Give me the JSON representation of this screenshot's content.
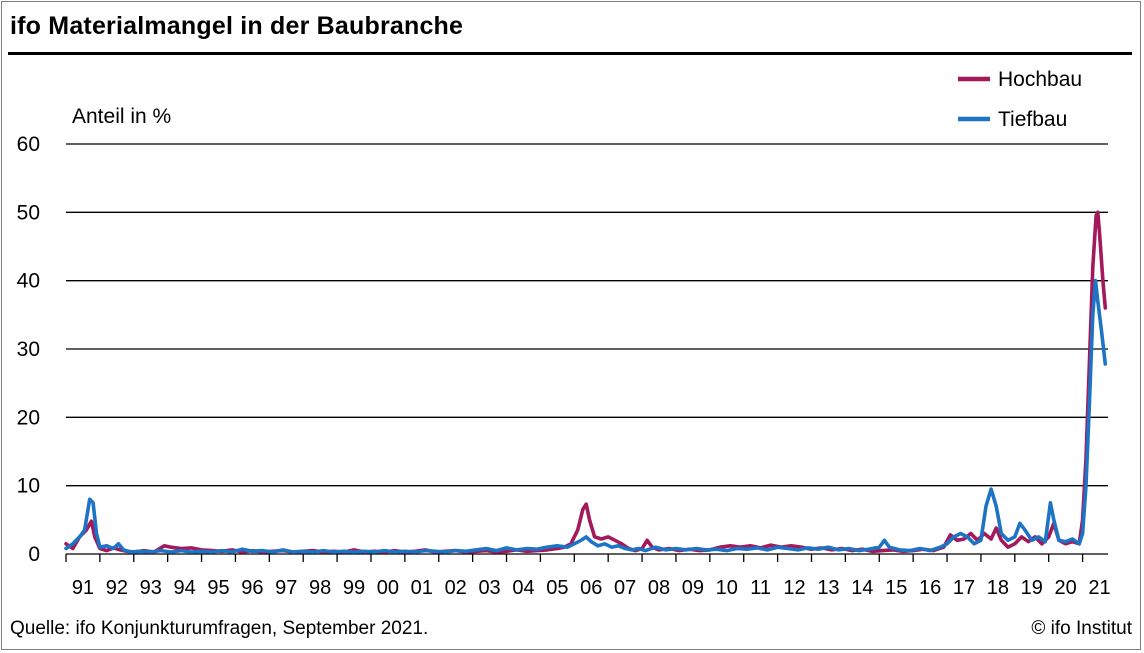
{
  "header": {
    "title": "ifo Materialmangel in der Baubranche"
  },
  "footer": {
    "source": "Quelle: ifo Konjunkturumfragen, September 2021.",
    "copyright": "© ifo Institut"
  },
  "chart_data": {
    "type": "line",
    "title": "ifo Materialmangel in der Baubranche",
    "ylabel": "Anteil in %",
    "ylim": [
      0,
      60
    ],
    "yticks": [
      0,
      10,
      20,
      30,
      40,
      50,
      60
    ],
    "xlim": [
      1991,
      2021.75
    ],
    "xticks": [
      "91",
      "92",
      "93",
      "94",
      "95",
      "96",
      "97",
      "98",
      "99",
      "00",
      "01",
      "02",
      "03",
      "04",
      "05",
      "06",
      "07",
      "08",
      "09",
      "10",
      "11",
      "12",
      "13",
      "14",
      "15",
      "16",
      "17",
      "18",
      "19",
      "20",
      "21"
    ],
    "grid": "horizontal",
    "legend": "top-right",
    "colors": {
      "Hochbau": "#a3195b",
      "Tiefbau": "#1d74c4"
    },
    "series": [
      {
        "name": "Hochbau",
        "color": "#a3195b",
        "points": [
          [
            1991.0,
            1.5
          ],
          [
            1991.2,
            0.8
          ],
          [
            1991.4,
            2.5
          ],
          [
            1991.6,
            3.5
          ],
          [
            1991.75,
            4.8
          ],
          [
            1991.85,
            2.5
          ],
          [
            1992.0,
            0.8
          ],
          [
            1992.2,
            0.5
          ],
          [
            1992.4,
            0.9
          ],
          [
            1992.6,
            0.6
          ],
          [
            1992.8,
            0.4
          ],
          [
            1993.0,
            0.3
          ],
          [
            1993.3,
            0.5
          ],
          [
            1993.6,
            0.3
          ],
          [
            1993.9,
            1.2
          ],
          [
            1994.1,
            1.0
          ],
          [
            1994.4,
            0.8
          ],
          [
            1994.7,
            0.9
          ],
          [
            1995.0,
            0.6
          ],
          [
            1995.3,
            0.5
          ],
          [
            1995.6,
            0.4
          ],
          [
            1995.9,
            0.6
          ],
          [
            1996.2,
            0.3
          ],
          [
            1996.5,
            0.5
          ],
          [
            1996.8,
            0.3
          ],
          [
            1997.1,
            0.4
          ],
          [
            1997.4,
            0.5
          ],
          [
            1997.7,
            0.3
          ],
          [
            1998.0,
            0.4
          ],
          [
            1998.3,
            0.5
          ],
          [
            1998.6,
            0.3
          ],
          [
            1998.9,
            0.4
          ],
          [
            1999.2,
            0.3
          ],
          [
            1999.5,
            0.6
          ],
          [
            1999.8,
            0.3
          ],
          [
            2000.1,
            0.4
          ],
          [
            2000.4,
            0.3
          ],
          [
            2000.7,
            0.5
          ],
          [
            2001.0,
            0.3
          ],
          [
            2001.3,
            0.4
          ],
          [
            2001.6,
            0.6
          ],
          [
            2001.9,
            0.3
          ],
          [
            2002.2,
            0.4
          ],
          [
            2002.5,
            0.5
          ],
          [
            2002.8,
            0.3
          ],
          [
            2003.1,
            0.4
          ],
          [
            2003.4,
            0.5
          ],
          [
            2003.7,
            0.3
          ],
          [
            2004.0,
            0.4
          ],
          [
            2004.3,
            0.6
          ],
          [
            2004.6,
            0.4
          ],
          [
            2004.9,
            0.5
          ],
          [
            2005.2,
            0.6
          ],
          [
            2005.5,
            0.8
          ],
          [
            2005.7,
            1.0
          ],
          [
            2005.9,
            1.5
          ],
          [
            2006.1,
            3.5
          ],
          [
            2006.25,
            6.5
          ],
          [
            2006.35,
            7.3
          ],
          [
            2006.45,
            5.0
          ],
          [
            2006.6,
            2.5
          ],
          [
            2006.8,
            2.2
          ],
          [
            2007.0,
            2.5
          ],
          [
            2007.2,
            2.0
          ],
          [
            2007.4,
            1.5
          ],
          [
            2007.6,
            0.8
          ],
          [
            2007.8,
            0.5
          ],
          [
            2008.0,
            0.8
          ],
          [
            2008.15,
            2.0
          ],
          [
            2008.3,
            1.0
          ],
          [
            2008.5,
            0.6
          ],
          [
            2008.8,
            0.8
          ],
          [
            2009.1,
            0.5
          ],
          [
            2009.4,
            0.7
          ],
          [
            2009.7,
            0.5
          ],
          [
            2010.0,
            0.6
          ],
          [
            2010.3,
            1.0
          ],
          [
            2010.6,
            1.2
          ],
          [
            2010.9,
            1.0
          ],
          [
            2011.2,
            1.2
          ],
          [
            2011.5,
            0.9
          ],
          [
            2011.8,
            1.3
          ],
          [
            2012.1,
            1.0
          ],
          [
            2012.4,
            1.2
          ],
          [
            2012.7,
            1.0
          ],
          [
            2013.0,
            0.7
          ],
          [
            2013.3,
            0.9
          ],
          [
            2013.6,
            0.6
          ],
          [
            2013.9,
            0.8
          ],
          [
            2014.2,
            0.5
          ],
          [
            2014.5,
            0.7
          ],
          [
            2014.8,
            0.4
          ],
          [
            2015.1,
            0.5
          ],
          [
            2015.4,
            0.6
          ],
          [
            2015.7,
            0.4
          ],
          [
            2016.0,
            0.5
          ],
          [
            2016.3,
            0.7
          ],
          [
            2016.6,
            0.5
          ],
          [
            2016.9,
            1.0
          ],
          [
            2017.1,
            2.8
          ],
          [
            2017.3,
            2.0
          ],
          [
            2017.5,
            2.2
          ],
          [
            2017.7,
            3.0
          ],
          [
            2017.9,
            2.0
          ],
          [
            2018.1,
            3.0
          ],
          [
            2018.3,
            2.2
          ],
          [
            2018.45,
            3.8
          ],
          [
            2018.6,
            2.0
          ],
          [
            2018.8,
            1.0
          ],
          [
            2019.0,
            1.5
          ],
          [
            2019.2,
            2.5
          ],
          [
            2019.4,
            1.8
          ],
          [
            2019.6,
            2.5
          ],
          [
            2019.8,
            1.5
          ],
          [
            2020.0,
            2.5
          ],
          [
            2020.15,
            4.5
          ],
          [
            2020.3,
            2.0
          ],
          [
            2020.5,
            1.5
          ],
          [
            2020.7,
            1.8
          ],
          [
            2020.9,
            1.5
          ],
          [
            2021.0,
            5.0
          ],
          [
            2021.1,
            14.0
          ],
          [
            2021.2,
            28.0
          ],
          [
            2021.3,
            42.0
          ],
          [
            2021.4,
            49.5
          ],
          [
            2021.45,
            50.0
          ],
          [
            2021.5,
            47.0
          ],
          [
            2021.6,
            40.0
          ],
          [
            2021.67,
            36.0
          ]
        ]
      },
      {
        "name": "Tiefbau",
        "color": "#1d74c4",
        "points": [
          [
            1991.0,
            0.8
          ],
          [
            1991.2,
            1.5
          ],
          [
            1991.4,
            2.5
          ],
          [
            1991.55,
            3.5
          ],
          [
            1991.7,
            8.0
          ],
          [
            1991.8,
            7.5
          ],
          [
            1991.9,
            3.0
          ],
          [
            1992.0,
            1.0
          ],
          [
            1992.2,
            1.2
          ],
          [
            1992.4,
            0.8
          ],
          [
            1992.55,
            1.5
          ],
          [
            1992.7,
            0.6
          ],
          [
            1992.9,
            0.3
          ],
          [
            1993.2,
            0.4
          ],
          [
            1993.5,
            0.3
          ],
          [
            1993.8,
            0.5
          ],
          [
            1994.1,
            0.3
          ],
          [
            1994.4,
            0.5
          ],
          [
            1994.7,
            0.3
          ],
          [
            1995.0,
            0.4
          ],
          [
            1995.3,
            0.3
          ],
          [
            1995.6,
            0.5
          ],
          [
            1995.9,
            0.3
          ],
          [
            1996.2,
            0.7
          ],
          [
            1996.5,
            0.4
          ],
          [
            1996.8,
            0.5
          ],
          [
            1997.1,
            0.3
          ],
          [
            1997.4,
            0.6
          ],
          [
            1997.7,
            0.3
          ],
          [
            1998.0,
            0.4
          ],
          [
            1998.3,
            0.3
          ],
          [
            1998.6,
            0.5
          ],
          [
            1998.9,
            0.3
          ],
          [
            1999.2,
            0.4
          ],
          [
            1999.5,
            0.3
          ],
          [
            1999.8,
            0.4
          ],
          [
            2000.1,
            0.3
          ],
          [
            2000.4,
            0.5
          ],
          [
            2000.7,
            0.3
          ],
          [
            2001.0,
            0.4
          ],
          [
            2001.3,
            0.3
          ],
          [
            2001.6,
            0.5
          ],
          [
            2001.9,
            0.4
          ],
          [
            2002.2,
            0.3
          ],
          [
            2002.5,
            0.5
          ],
          [
            2002.8,
            0.4
          ],
          [
            2003.1,
            0.6
          ],
          [
            2003.4,
            0.8
          ],
          [
            2003.7,
            0.5
          ],
          [
            2004.0,
            0.9
          ],
          [
            2004.3,
            0.6
          ],
          [
            2004.6,
            0.8
          ],
          [
            2004.9,
            0.7
          ],
          [
            2005.2,
            1.0
          ],
          [
            2005.5,
            1.2
          ],
          [
            2005.8,
            1.0
          ],
          [
            2006.0,
            1.5
          ],
          [
            2006.2,
            2.0
          ],
          [
            2006.35,
            2.5
          ],
          [
            2006.5,
            1.8
          ],
          [
            2006.7,
            1.2
          ],
          [
            2006.9,
            1.5
          ],
          [
            2007.1,
            1.0
          ],
          [
            2007.3,
            1.2
          ],
          [
            2007.5,
            0.8
          ],
          [
            2007.7,
            0.6
          ],
          [
            2007.9,
            0.8
          ],
          [
            2008.1,
            0.5
          ],
          [
            2008.4,
            1.0
          ],
          [
            2008.7,
            0.6
          ],
          [
            2009.0,
            0.8
          ],
          [
            2009.3,
            0.6
          ],
          [
            2009.6,
            0.8
          ],
          [
            2009.9,
            0.6
          ],
          [
            2010.2,
            0.7
          ],
          [
            2010.5,
            0.5
          ],
          [
            2010.8,
            0.8
          ],
          [
            2011.1,
            0.7
          ],
          [
            2011.4,
            0.9
          ],
          [
            2011.7,
            0.6
          ],
          [
            2012.0,
            1.0
          ],
          [
            2012.3,
            0.8
          ],
          [
            2012.6,
            0.6
          ],
          [
            2012.9,
            0.9
          ],
          [
            2013.2,
            0.7
          ],
          [
            2013.5,
            1.0
          ],
          [
            2013.8,
            0.6
          ],
          [
            2014.1,
            0.8
          ],
          [
            2014.4,
            0.5
          ],
          [
            2014.7,
            0.7
          ],
          [
            2015.0,
            1.0
          ],
          [
            2015.15,
            2.0
          ],
          [
            2015.3,
            1.0
          ],
          [
            2015.6,
            0.6
          ],
          [
            2015.9,
            0.5
          ],
          [
            2016.2,
            0.8
          ],
          [
            2016.5,
            0.5
          ],
          [
            2016.8,
            1.0
          ],
          [
            2017.0,
            1.5
          ],
          [
            2017.2,
            2.5
          ],
          [
            2017.4,
            3.0
          ],
          [
            2017.6,
            2.5
          ],
          [
            2017.8,
            1.5
          ],
          [
            2018.0,
            2.0
          ],
          [
            2018.15,
            7.0
          ],
          [
            2018.3,
            9.5
          ],
          [
            2018.45,
            7.0
          ],
          [
            2018.6,
            3.0
          ],
          [
            2018.8,
            2.0
          ],
          [
            2019.0,
            2.5
          ],
          [
            2019.15,
            4.5
          ],
          [
            2019.3,
            3.5
          ],
          [
            2019.5,
            2.0
          ],
          [
            2019.7,
            2.5
          ],
          [
            2019.9,
            1.8
          ],
          [
            2020.05,
            7.5
          ],
          [
            2020.15,
            5.0
          ],
          [
            2020.3,
            2.0
          ],
          [
            2020.5,
            1.8
          ],
          [
            2020.7,
            2.2
          ],
          [
            2020.9,
            1.5
          ],
          [
            2021.0,
            3.0
          ],
          [
            2021.1,
            10.0
          ],
          [
            2021.2,
            22.0
          ],
          [
            2021.3,
            35.0
          ],
          [
            2021.38,
            40.0
          ],
          [
            2021.45,
            37.0
          ],
          [
            2021.55,
            33.0
          ],
          [
            2021.67,
            27.8
          ]
        ]
      }
    ]
  }
}
